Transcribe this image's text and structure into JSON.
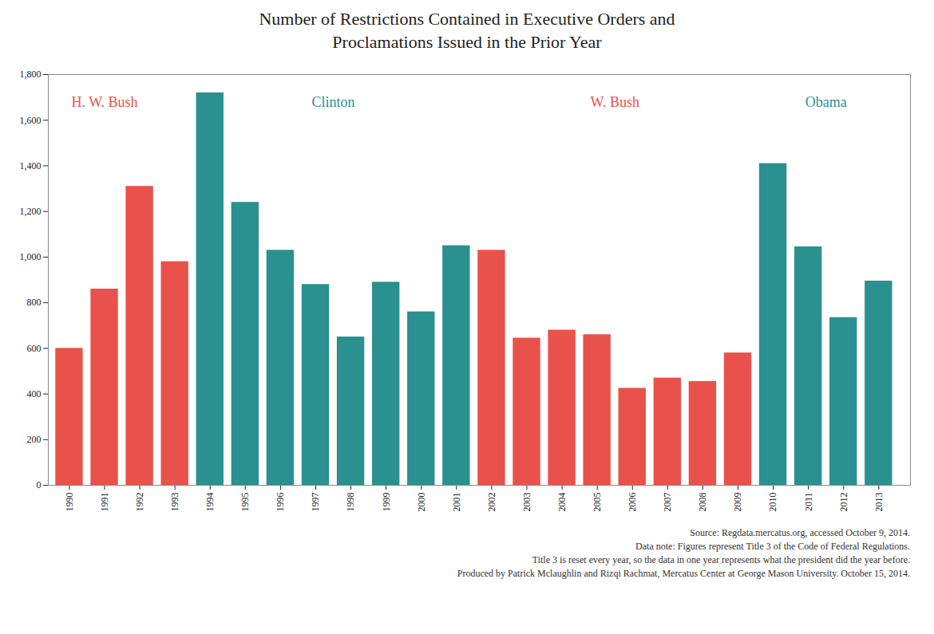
{
  "chart_data": {
    "type": "bar",
    "title": "Number of Restrictions Contained in Executive Orders and\nProclamations Issued in the Prior Year",
    "x": [
      1990,
      1991,
      1992,
      1993,
      1994,
      1995,
      1996,
      1997,
      1998,
      1999,
      2000,
      2001,
      2002,
      2003,
      2004,
      2005,
      2006,
      2007,
      2008,
      2009,
      2010,
      2011,
      2012,
      2013
    ],
    "values": [
      600,
      860,
      1310,
      980,
      1720,
      1240,
      1030,
      880,
      650,
      890,
      760,
      1050,
      1030,
      645,
      680,
      660,
      425,
      470,
      455,
      580,
      1410,
      1045,
      735,
      895
    ],
    "colors": [
      "#E8524A",
      "#E8524A",
      "#E8524A",
      "#E8524A",
      "#2A9090",
      "#2A9090",
      "#2A9090",
      "#2A9090",
      "#2A9090",
      "#2A9090",
      "#2A9090",
      "#2A9090",
      "#E8524A",
      "#E8524A",
      "#E8524A",
      "#E8524A",
      "#E8524A",
      "#E8524A",
      "#E8524A",
      "#E8524A",
      "#2A9090",
      "#2A9090",
      "#2A9090",
      "#2A9090"
    ],
    "xlim": [
      1989.4,
      2013.9
    ],
    "xticks": [
      1990,
      1991,
      1992,
      1993,
      1994,
      1995,
      1996,
      1997,
      1998,
      1999,
      2000,
      2001,
      2002,
      2003,
      2004,
      2005,
      2006,
      2007,
      2008,
      2009,
      2010,
      2011,
      2012,
      2013
    ],
    "ylim": [
      0,
      1800
    ],
    "yticks": [
      0,
      200,
      400,
      600,
      800,
      {
        "value": 1000,
        "label": "1,000"
      },
      {
        "value": 1200,
        "label": "1,200"
      },
      {
        "value": 1400,
        "label": "1,400"
      },
      {
        "value": 1600,
        "label": "1,600"
      },
      {
        "value": 1800,
        "label": "1,800"
      }
    ],
    "grid": false,
    "annotations": [
      {
        "text": "H. W. Bush",
        "color": "#E8524A",
        "x": 1991.0,
        "y": 1660
      },
      {
        "text": "Clinton",
        "color": "#2A9090",
        "x": 1997.5,
        "y": 1660
      },
      {
        "text": "W. Bush",
        "color": "#E8524A",
        "x": 2005.5,
        "y": 1660
      },
      {
        "text": "Obama",
        "color": "#2A9090",
        "x": 2011.5,
        "y": 1660
      }
    ],
    "caption": [
      "Source: Regdata.mercatus.org, accessed October 9, 2014.",
      "Data note: Figures represent Title 3 of the Code of Federal Regulations.",
      "Title 3 is reset every year, so the data in one year represents what the president did the year before.",
      "Produced by Patrick Mclaughlin and Rizqi Rachmat, Mercatus Center at George Mason University. October 15, 2014."
    ]
  }
}
